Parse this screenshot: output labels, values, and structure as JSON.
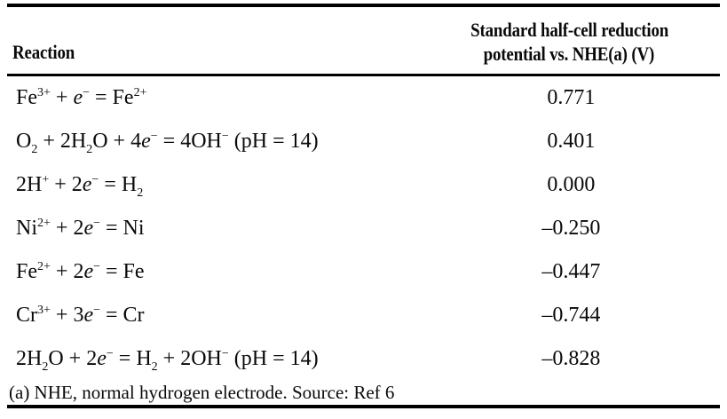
{
  "colors": {
    "background": "#ffffff",
    "text": "#0a0a0a",
    "rule": "#000000"
  },
  "table": {
    "header": {
      "reaction_label": "Reaction",
      "value_label_line1": "Standard half-cell reduction",
      "value_label_line2": "potential vs. NHE(a) (V)"
    },
    "rows": [
      {
        "reaction": "Fe^{3+} + *e*^{−} = Fe^{2+}",
        "value": "0.771"
      },
      {
        "reaction": "O_{2} + 2H_{2}O + 4*e*^{−} = 4OH^{−} (pH = 14)",
        "value": "0.401"
      },
      {
        "reaction": "2H^{+} + 2*e*^{−} = H_{2}",
        "value": "0.000"
      },
      {
        "reaction": "Ni^{2+} + 2*e*^{−} = Ni",
        "value": "–0.250"
      },
      {
        "reaction": "Fe^{2+} + 2*e*^{−} = Fe",
        "value": "–0.447"
      },
      {
        "reaction": "Cr^{3+} + 3*e*^{−} = Cr",
        "value": "–0.744"
      },
      {
        "reaction": "2H_{2}O + 2*e*^{−} = H_{2} + 2OH^{−} (pH = 14)",
        "value": "–0.828"
      }
    ],
    "footnote": "(a) NHE, normal hydrogen electrode. Source: Ref 6"
  }
}
